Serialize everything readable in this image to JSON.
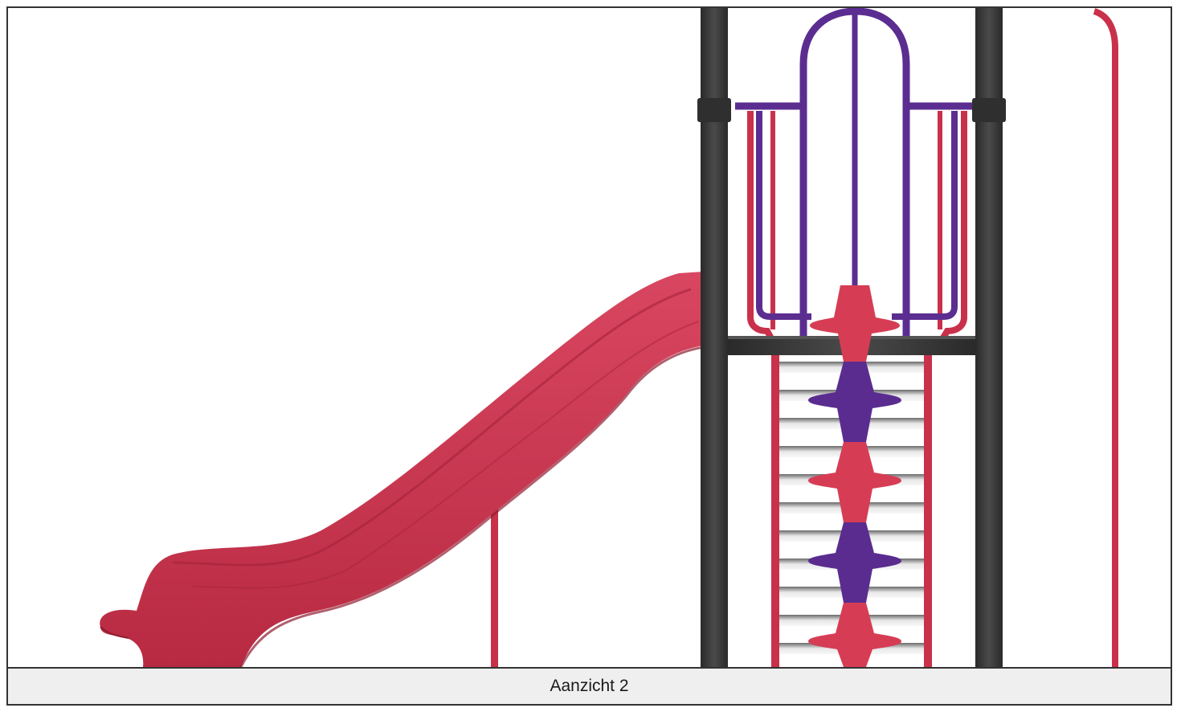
{
  "caption": {
    "label": "Aanzicht 2"
  },
  "colors": {
    "slide_red": "#c9314b",
    "slide_shadow": "#a52338",
    "post_dark": "#3b3b3b",
    "rail_purple": "#5b2d91",
    "grip_red": "#d63d55",
    "grip_purple": "#5a2c90",
    "caption_bg": "#efefef",
    "border": "#333333"
  }
}
